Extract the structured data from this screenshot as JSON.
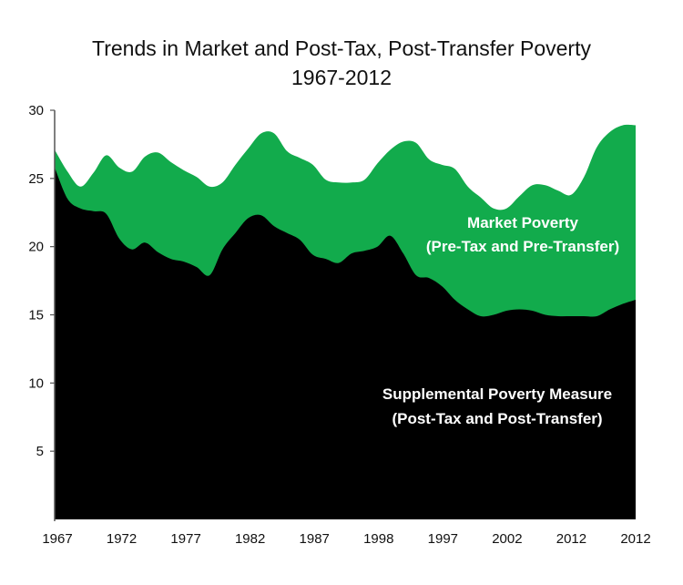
{
  "chart_data": {
    "type": "area",
    "title": [
      "Trends in Market and Post-Tax, Post-Transfer Poverty",
      "1967-2012"
    ],
    "xlabel": "",
    "ylabel": "",
    "ylim": [
      0,
      30
    ],
    "yticks": [
      5,
      10,
      15,
      20,
      25,
      30
    ],
    "xtick_labels": [
      "1967",
      "1972",
      "1977",
      "1982",
      "1987",
      "1998",
      "1997",
      "2002",
      "2012",
      "2012"
    ],
    "grid": false,
    "x_index": [
      0,
      1,
      2,
      3,
      4,
      5,
      6,
      7,
      8,
      9,
      10,
      11,
      12,
      13,
      14,
      15,
      16,
      17,
      18,
      19,
      20,
      21,
      22,
      23,
      24,
      25,
      26,
      27,
      28,
      29,
      30,
      31,
      32,
      33,
      34,
      35,
      36,
      37,
      38,
      39,
      40,
      41,
      42,
      43,
      44,
      45
    ],
    "series": [
      {
        "values": [
          27.1,
          25.5,
          24.4,
          25.4,
          26.7,
          25.8,
          25.5,
          26.6,
          26.9,
          26.2,
          25.6,
          25.1,
          24.4,
          24.7,
          26.0,
          27.2,
          28.3,
          28.3,
          27.0,
          26.5,
          26.0,
          24.9,
          24.7,
          24.7,
          24.9,
          26.1,
          27.1,
          27.7,
          27.6,
          26.4,
          26.0,
          25.7,
          24.4,
          23.6,
          22.8,
          22.8,
          23.7,
          24.5,
          24.5,
          24.1,
          23.8,
          25.1,
          27.3,
          28.4,
          28.9,
          28.9
        ],
        "color": "#12ab4c",
        "label": [
          "Market Poverty",
          "(Pre-Tax and Pre-Transfer)"
        ]
      },
      {
        "values": [
          25.8,
          23.5,
          22.8,
          22.6,
          22.4,
          20.6,
          19.8,
          20.3,
          19.6,
          19.1,
          18.9,
          18.5,
          17.9,
          19.8,
          21.0,
          22.1,
          22.3,
          21.5,
          21.0,
          20.5,
          19.4,
          19.1,
          18.8,
          19.5,
          19.7,
          20.0,
          20.8,
          19.5,
          17.9,
          17.7,
          17.1,
          16.1,
          15.4,
          14.9,
          15.0,
          15.3,
          15.4,
          15.3,
          15.0,
          14.9,
          14.9,
          14.9,
          14.9,
          15.4,
          15.8,
          16.1
        ],
        "color": "#000000",
        "label": [
          "Supplemental Poverty Measure",
          "(Post-Tax and Post-Transfer)"
        ]
      }
    ]
  }
}
